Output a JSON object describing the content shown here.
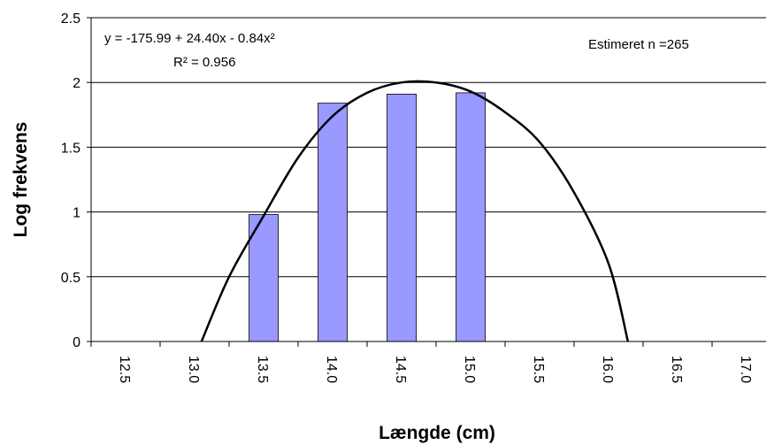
{
  "chart_data": {
    "type": "bar",
    "x_label": "Længde (cm)",
    "y_label": "Log frekvens",
    "annotations": [
      "y = -175.99 + 24.40x - 0.84x²",
      "R² = 0.956",
      "Estimeret n =265"
    ],
    "categories": [
      "12.5",
      "13.0",
      "13.5",
      "14.0",
      "14.5",
      "15.0",
      "15.5",
      "16.0",
      "16.5",
      "17.0"
    ],
    "values": [
      null,
      null,
      0.98,
      1.84,
      1.91,
      1.92,
      null,
      null,
      null,
      null
    ],
    "color": "#9999ff",
    "trend": {
      "color": "#000000",
      "x": [
        13.05,
        13.25,
        13.5,
        13.75,
        14.0,
        14.25,
        14.5,
        14.75,
        15.0,
        15.25,
        15.5,
        15.75,
        16.0,
        16.14
      ],
      "values": [
        0,
        0.5,
        0.97,
        1.42,
        1.74,
        1.92,
        2.0,
        2.0,
        1.93,
        1.77,
        1.54,
        1.15,
        0.6,
        0
      ]
    },
    "ylim": [
      0,
      2.5
    ],
    "yticks": [
      0,
      0.5,
      1,
      1.5,
      2,
      2.5
    ],
    "grid": true
  }
}
